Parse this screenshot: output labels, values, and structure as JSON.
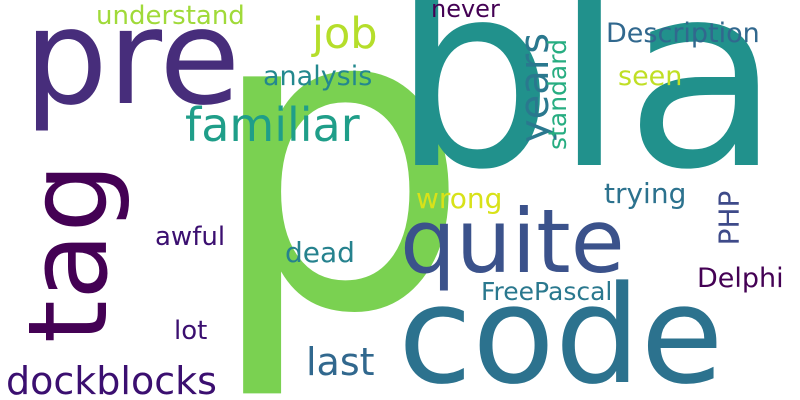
{
  "words": [
    {
      "id": "w-p",
      "text": "p",
      "color": "#7ad151"
    },
    {
      "id": "w-bla",
      "text": "bla",
      "color": "#21918c"
    },
    {
      "id": "w-code",
      "text": "code",
      "color": "#2c728e"
    },
    {
      "id": "w-pre",
      "text": "pre",
      "color": "#472d7b"
    },
    {
      "id": "w-tag",
      "text": "tag",
      "color": "#440154"
    },
    {
      "id": "w-quite",
      "text": "quite",
      "color": "#3b528b"
    },
    {
      "id": "w-familiar",
      "text": "familiar",
      "color": "#1f9e89"
    },
    {
      "id": "w-dockblocks",
      "text": "dockblocks",
      "color": "#3b0f70"
    },
    {
      "id": "w-job",
      "text": "job",
      "color": "#b5de2b"
    },
    {
      "id": "w-years",
      "text": "years",
      "color": "#2a788e"
    },
    {
      "id": "w-understand",
      "text": "understand",
      "color": "#a0da39"
    },
    {
      "id": "w-never",
      "text": "never",
      "color": "#440154"
    },
    {
      "id": "w-description",
      "text": "Description",
      "color": "#31688e"
    },
    {
      "id": "w-analysis",
      "text": "analysis",
      "color": "#23888e"
    },
    {
      "id": "w-standard",
      "text": "standard",
      "color": "#27ad81"
    },
    {
      "id": "w-seen",
      "text": "seen",
      "color": "#c0df25"
    },
    {
      "id": "w-wrong",
      "text": "wrong",
      "color": "#d8e219"
    },
    {
      "id": "w-trying",
      "text": "trying",
      "color": "#2c728e"
    },
    {
      "id": "w-php",
      "text": "PHP",
      "color": "#3e4a89"
    },
    {
      "id": "w-awful",
      "text": "awful",
      "color": "#3b0f70"
    },
    {
      "id": "w-dead",
      "text": "dead",
      "color": "#26828e"
    },
    {
      "id": "w-delphi",
      "text": "Delphi",
      "color": "#440154"
    },
    {
      "id": "w-freepascal",
      "text": "FreePascal",
      "color": "#2a788e"
    },
    {
      "id": "w-lot",
      "text": "lot",
      "color": "#3b0f70"
    },
    {
      "id": "w-last",
      "text": "last",
      "color": "#31688e"
    }
  ]
}
